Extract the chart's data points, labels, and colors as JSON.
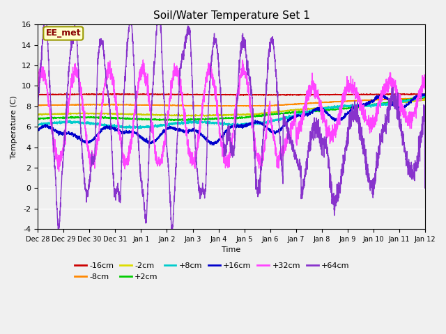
{
  "title": "Soil/Water Temperature Set 1",
  "xlabel": "Time",
  "ylabel": "Temperature (C)",
  "ylim": [
    -4,
    16
  ],
  "yticks": [
    -4,
    -2,
    0,
    2,
    4,
    6,
    8,
    10,
    12,
    14,
    16
  ],
  "annotation": "EE_met",
  "bg_color": "#f0f0f0",
  "xtick_labels": [
    "Dec 28",
    "Dec 29",
    "Dec 30",
    "Dec 31",
    "Jan 1",
    "Jan 2",
    "Jan 3",
    "Jan 4",
    "Jan 5",
    "Jan 6",
    "Jan 7",
    "Jan 8",
    "Jan 9",
    "Jan 10",
    "Jan 11",
    "Jan 12"
  ],
  "legend_colors_row1": [
    "#cc0000",
    "#ff8800",
    "#dddd00",
    "#00cc00",
    "#00cccc",
    "#0000cc"
  ],
  "legend_labels_row1": [
    "-16cm",
    "-8cm",
    "-2cm",
    "+2cm",
    "+8cm",
    "+16cm"
  ],
  "legend_colors_row2": [
    "#ff44ff",
    "#8833cc"
  ],
  "legend_labels_row2": [
    "+32cm",
    "+64cm"
  ],
  "series_colors": {
    "n16": "#cc0000",
    "n8": "#ff8800",
    "n2": "#cccc00",
    "p2": "#00cc00",
    "p8": "#00cccc",
    "p16": "#0000cc",
    "p32": "#ff44ff",
    "p64": "#8833cc"
  }
}
